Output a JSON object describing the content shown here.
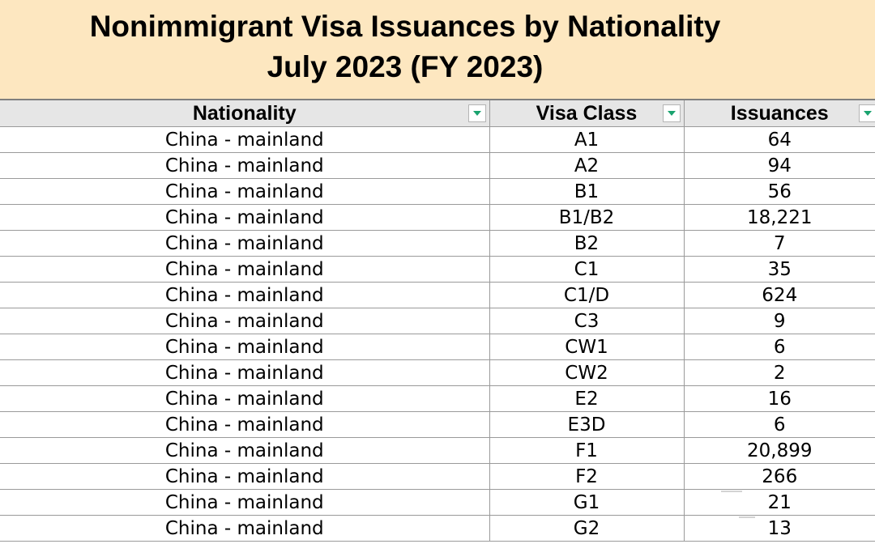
{
  "title": {
    "line1": "Nonimmigrant Visa Issuances by Nationality",
    "line2": "July 2023 (FY 2023)"
  },
  "colors": {
    "title_background": "#fde7c0",
    "header_background": "#e6e6e6",
    "filter_arrow": "#1aa36f"
  },
  "table": {
    "headers": [
      "Nationality",
      "Visa Class",
      "Issuances"
    ],
    "filter_icon": "filter-dropdown-icon",
    "rows": [
      [
        "China - mainland",
        "A1",
        "64"
      ],
      [
        "China - mainland",
        "A2",
        "94"
      ],
      [
        "China - mainland",
        "B1",
        "56"
      ],
      [
        "China - mainland",
        "B1/B2",
        "18,221"
      ],
      [
        "China - mainland",
        "B2",
        "7"
      ],
      [
        "China - mainland",
        "C1",
        "35"
      ],
      [
        "China - mainland",
        "C1/D",
        "624"
      ],
      [
        "China - mainland",
        "C3",
        "9"
      ],
      [
        "China - mainland",
        "CW1",
        "6"
      ],
      [
        "China - mainland",
        "CW2",
        "2"
      ],
      [
        "China - mainland",
        "E2",
        "16"
      ],
      [
        "China - mainland",
        "E3D",
        "6"
      ],
      [
        "China - mainland",
        "F1",
        "20,899"
      ],
      [
        "China - mainland",
        "F2",
        "266"
      ],
      [
        "China - mainland",
        "G1",
        "21"
      ],
      [
        "China - mainland",
        "G2",
        "13"
      ]
    ]
  }
}
